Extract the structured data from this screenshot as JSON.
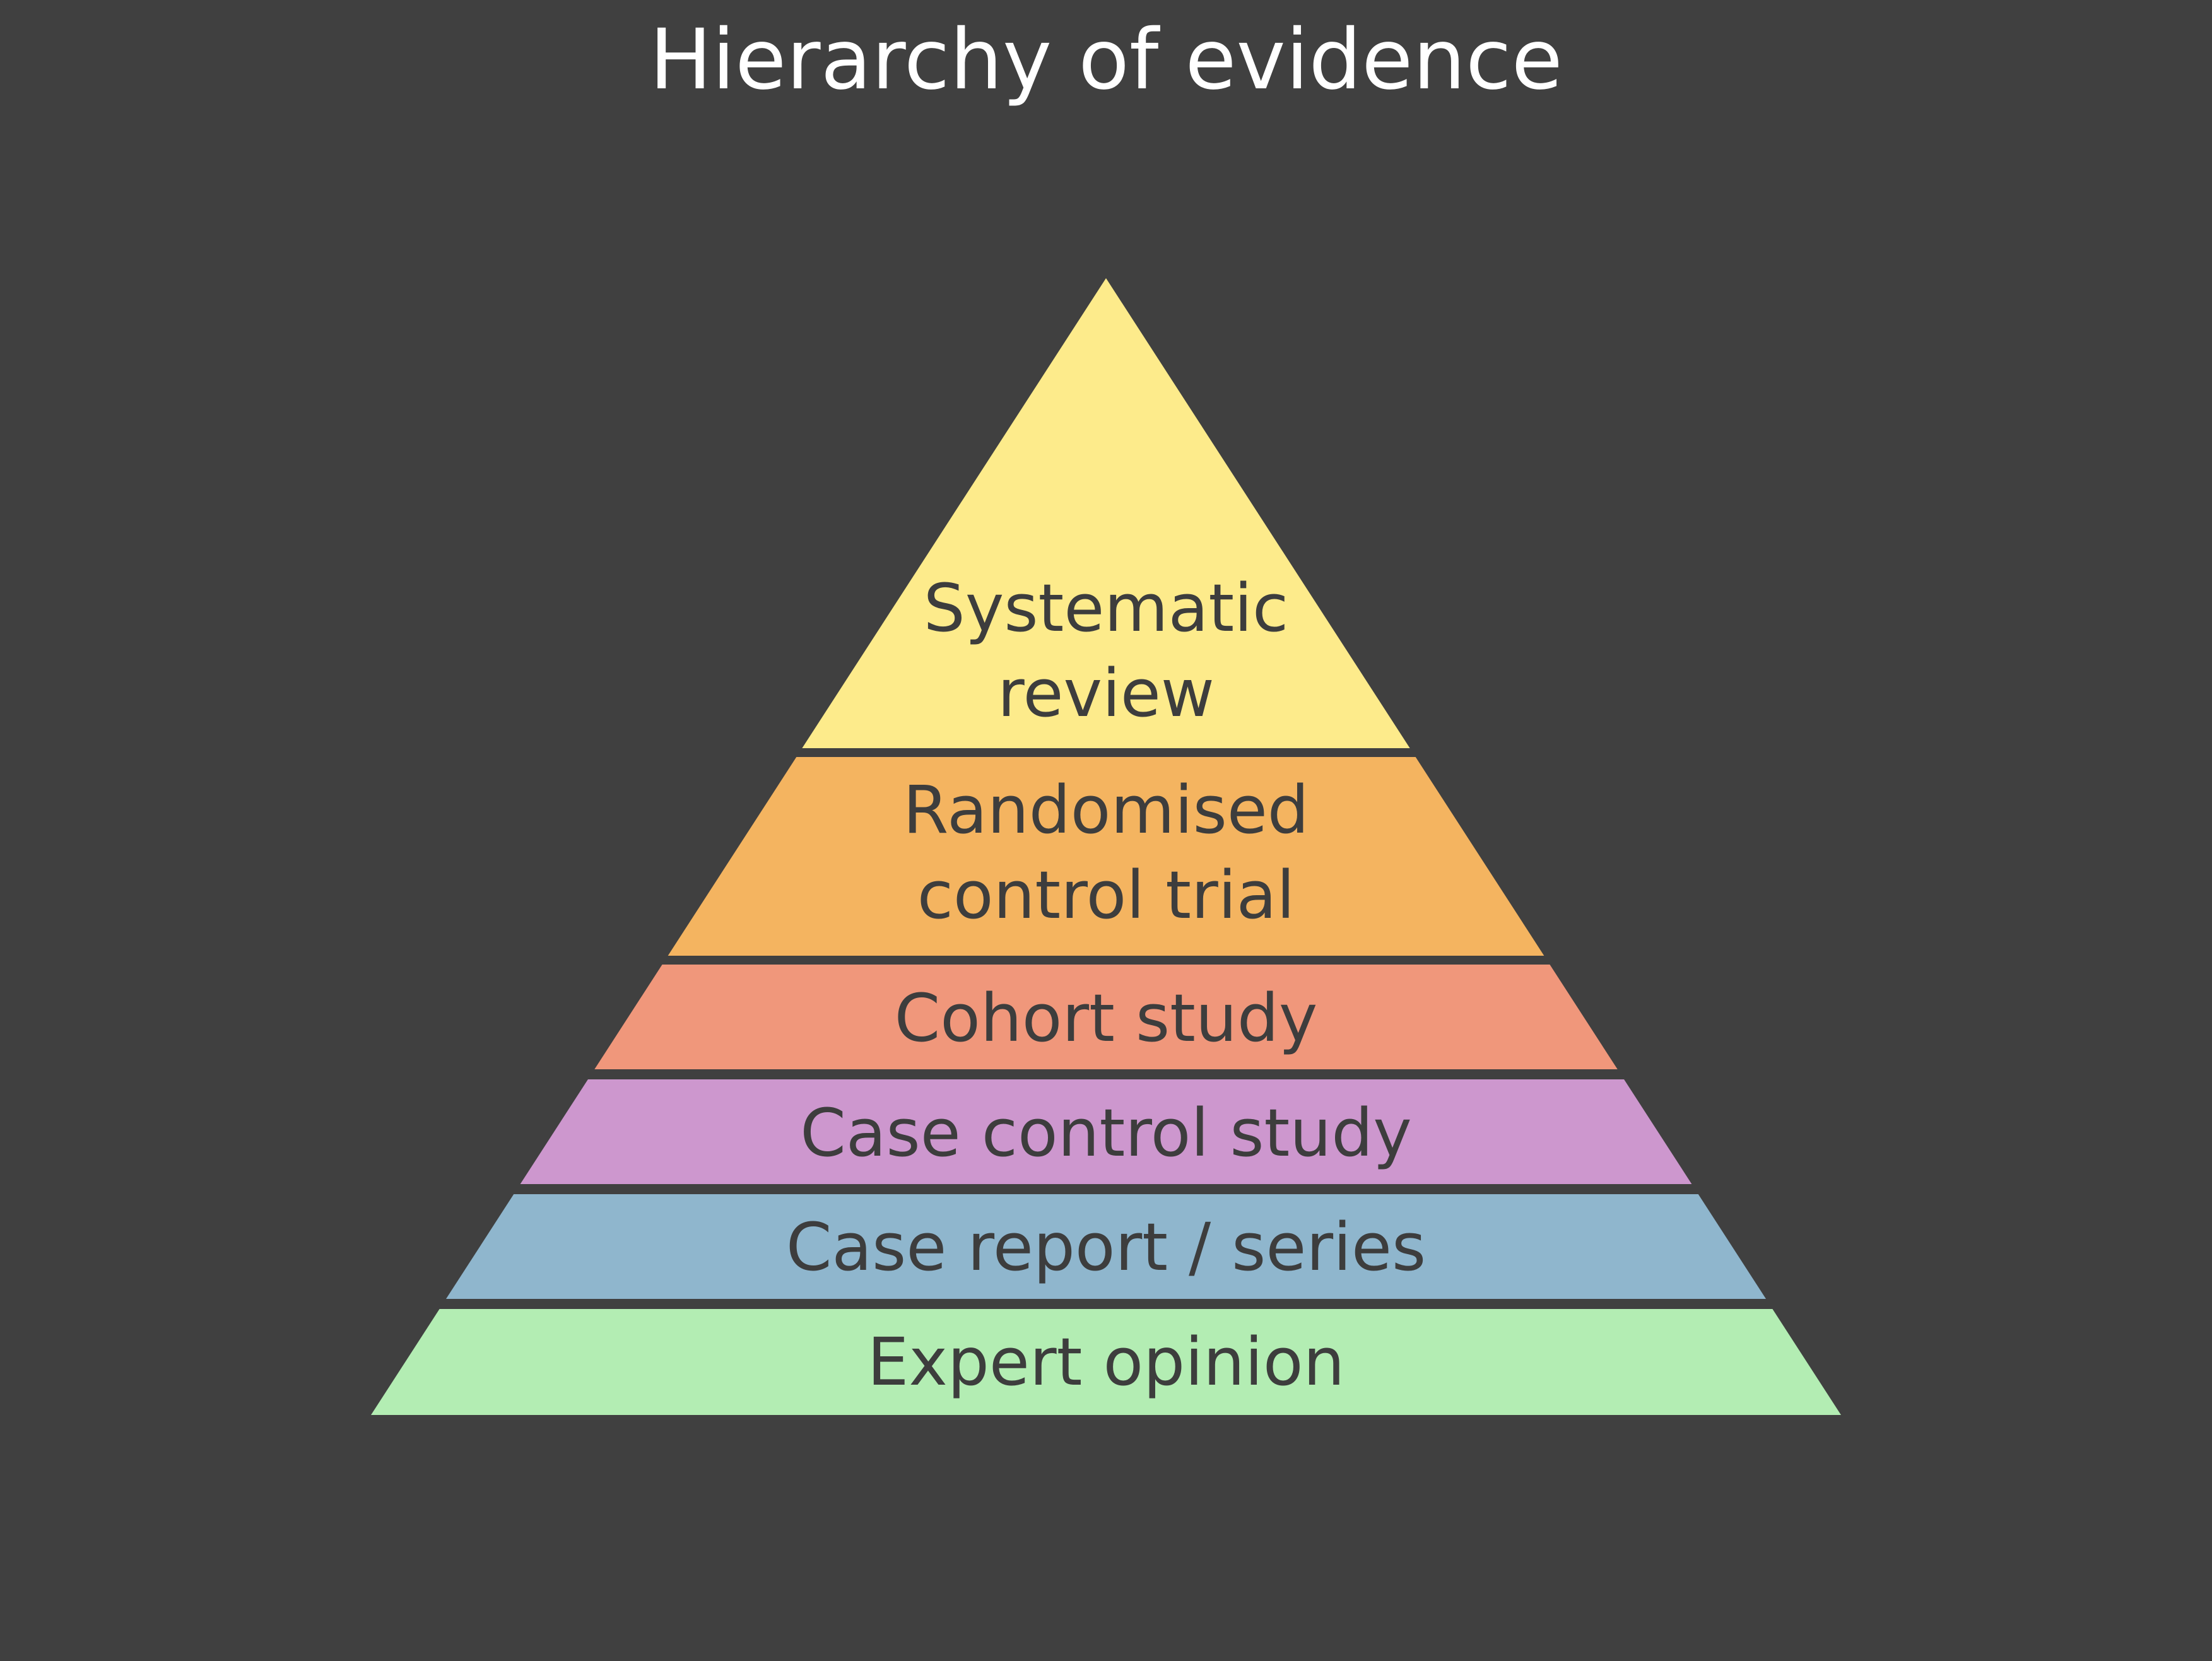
{
  "title": "Hierarchy of evidence",
  "colors": {
    "background": "#404040",
    "title_text": "#ffffff",
    "tier_text": "#3d3d3d"
  },
  "tiers": [
    {
      "lines": [
        "Systematic",
        "review"
      ],
      "color": "#fdeb8b"
    },
    {
      "lines": [
        "Randomised",
        "control trial"
      ],
      "color": "#f4b460"
    },
    {
      "lines": [
        "Cohort study"
      ],
      "color": "#f0977b"
    },
    {
      "lines": [
        "Case control study"
      ],
      "color": "#cd97ce"
    },
    {
      "lines": [
        "Case report / series"
      ],
      "color": "#8fb6cd"
    },
    {
      "lines": [
        "Expert opinion"
      ],
      "color": "#b3edb3"
    }
  ]
}
